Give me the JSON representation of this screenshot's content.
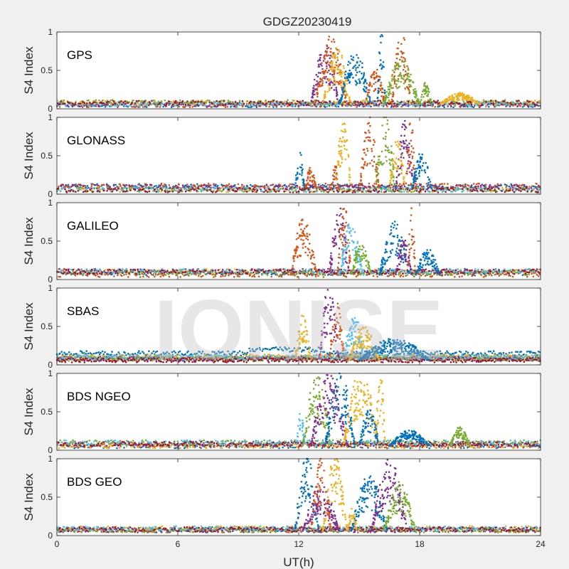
{
  "figure": {
    "title": "GDGZ20230419",
    "watermark": "IONISE",
    "xlabel": "UT(h)",
    "ylabel": "S4 Index",
    "colors": [
      "#0072BD",
      "#D95319",
      "#EDB120",
      "#7E2F8E",
      "#77AC30",
      "#4DBEEE",
      "#A2142F"
    ]
  },
  "chart_data": [
    {
      "type": "scatter",
      "title": "GPS",
      "xlabel": "",
      "ylabel": "S4 Index",
      "xlim": [
        0,
        24
      ],
      "ylim": [
        0,
        1
      ],
      "xticks": [
        0,
        6,
        12,
        18,
        24
      ],
      "yticks": [
        0,
        0.5,
        1
      ],
      "grid": false,
      "legend": false,
      "bursts": [
        {
          "series": 3,
          "x": [
            12.6,
            14.0
          ],
          "peak": 0.8
        },
        {
          "series": 1,
          "x": [
            12.8,
            14.4
          ],
          "peak": 0.9
        },
        {
          "series": 2,
          "x": [
            13.2,
            14.6
          ],
          "peak": 0.75
        },
        {
          "series": 0,
          "x": [
            14.0,
            15.6
          ],
          "peak": 0.7
        },
        {
          "series": 1,
          "x": [
            15.3,
            16.3
          ],
          "peak": 0.5
        },
        {
          "series": 0,
          "x": [
            15.9,
            16.3
          ],
          "peak": 1.0
        },
        {
          "series": 1,
          "x": [
            16.6,
            17.6
          ],
          "peak": 0.95
        },
        {
          "series": 4,
          "x": [
            16.2,
            18.0
          ],
          "peak": 0.6
        },
        {
          "series": 4,
          "x": [
            18.0,
            18.6
          ],
          "peak": 0.3
        },
        {
          "series": 2,
          "x": [
            19.0,
            21.0
          ],
          "peak": 0.15
        }
      ]
    },
    {
      "type": "scatter",
      "title": "GLONASS",
      "xlabel": "",
      "ylabel": "S4 Index",
      "xlim": [
        0,
        24
      ],
      "ylim": [
        0,
        1
      ],
      "xticks": [
        0,
        6,
        12,
        18,
        24
      ],
      "yticks": [
        0,
        0.5,
        1
      ],
      "grid": false,
      "legend": false,
      "bursts": [
        {
          "series": 0,
          "x": [
            11.8,
            12.3
          ],
          "peak": 0.5
        },
        {
          "series": 1,
          "x": [
            12.3,
            12.9
          ],
          "peak": 0.3
        },
        {
          "series": 1,
          "x": [
            13.6,
            14.0
          ],
          "peak": 0.35
        },
        {
          "series": 2,
          "x": [
            13.8,
            14.6
          ],
          "peak": 0.95
        },
        {
          "series": 1,
          "x": [
            15.0,
            16.0
          ],
          "peak": 0.95
        },
        {
          "series": 4,
          "x": [
            15.8,
            16.8
          ],
          "peak": 1.0
        },
        {
          "series": 3,
          "x": [
            16.8,
            17.7
          ],
          "peak": 0.9
        },
        {
          "series": 1,
          "x": [
            17.3,
            17.8
          ],
          "peak": 0.95
        },
        {
          "series": 0,
          "x": [
            17.6,
            18.6
          ],
          "peak": 0.5
        },
        {
          "series": 2,
          "x": [
            16.5,
            17.3
          ],
          "peak": 0.7
        }
      ]
    },
    {
      "type": "scatter",
      "title": "GALILEO",
      "xlabel": "",
      "ylabel": "S4 Index",
      "xlim": [
        0,
        24
      ],
      "ylim": [
        0,
        1
      ],
      "xticks": [
        0,
        6,
        12,
        18,
        24
      ],
      "yticks": [
        0,
        0.5,
        1
      ],
      "grid": false,
      "legend": false,
      "bursts": [
        {
          "series": 1,
          "x": [
            11.6,
            12.9
          ],
          "peak": 0.75
        },
        {
          "series": 3,
          "x": [
            13.5,
            14.5
          ],
          "peak": 0.9
        },
        {
          "series": 1,
          "x": [
            13.9,
            14.6
          ],
          "peak": 0.95
        },
        {
          "series": 5,
          "x": [
            14.0,
            15.2
          ],
          "peak": 0.7
        },
        {
          "series": 4,
          "x": [
            14.6,
            15.6
          ],
          "peak": 0.45
        },
        {
          "series": 0,
          "x": [
            16.0,
            17.5
          ],
          "peak": 0.7
        },
        {
          "series": 3,
          "x": [
            16.8,
            17.6
          ],
          "peak": 0.5
        },
        {
          "series": 1,
          "x": [
            17.4,
            17.8
          ],
          "peak": 0.95
        },
        {
          "series": 0,
          "x": [
            17.8,
            19.0
          ],
          "peak": 0.35
        }
      ]
    },
    {
      "type": "scatter",
      "title": "SBAS",
      "xlabel": "",
      "ylabel": "S4 Index",
      "xlim": [
        0,
        24
      ],
      "ylim": [
        0,
        1
      ],
      "xticks": [
        0,
        6,
        12,
        18,
        24
      ],
      "yticks": [
        0,
        0.5,
        1
      ],
      "grid": false,
      "legend": false,
      "bursts": [
        {
          "series": 2,
          "x": [
            11.8,
            12.6
          ],
          "peak": 0.6
        },
        {
          "series": 3,
          "x": [
            13.0,
            14.0
          ],
          "peak": 1.0
        },
        {
          "series": 1,
          "x": [
            13.5,
            14.3
          ],
          "peak": 0.75
        },
        {
          "series": 5,
          "x": [
            14.2,
            15.3
          ],
          "peak": 0.6
        },
        {
          "series": 2,
          "x": [
            14.5,
            16.0
          ],
          "peak": 0.45
        },
        {
          "series": 0,
          "x": [
            15.0,
            18.5
          ],
          "peak": 0.3
        }
      ]
    },
    {
      "type": "scatter",
      "title": "BDS NGEO",
      "xlabel": "",
      "ylabel": "S4 Index",
      "xlim": [
        0,
        24
      ],
      "ylim": [
        0,
        1
      ],
      "xticks": [
        0,
        6,
        12,
        18,
        24
      ],
      "yticks": [
        0,
        0.5,
        1
      ],
      "grid": false,
      "legend": false,
      "bursts": [
        {
          "series": 5,
          "x": [
            11.9,
            12.3
          ],
          "peak": 0.55
        },
        {
          "series": 4,
          "x": [
            12.2,
            13.6
          ],
          "peak": 0.95
        },
        {
          "series": 3,
          "x": [
            12.6,
            14.4
          ],
          "peak": 0.95
        },
        {
          "series": 0,
          "x": [
            13.3,
            14.8
          ],
          "peak": 1.0
        },
        {
          "series": 2,
          "x": [
            14.2,
            16.0
          ],
          "peak": 1.0
        },
        {
          "series": 0,
          "x": [
            15.0,
            16.0
          ],
          "peak": 0.5
        },
        {
          "series": 2,
          "x": [
            15.8,
            16.3
          ],
          "peak": 1.0
        },
        {
          "series": 4,
          "x": [
            19.5,
            20.5
          ],
          "peak": 0.25
        },
        {
          "series": 0,
          "x": [
            16.5,
            18.5
          ],
          "peak": 0.2
        }
      ]
    },
    {
      "type": "scatter",
      "title": "BDS GEO",
      "xlabel": "UT(h)",
      "ylabel": "S4 Index",
      "xlim": [
        0,
        24
      ],
      "ylim": [
        0,
        1
      ],
      "xticks": [
        0,
        6,
        12,
        18,
        24
      ],
      "yticks": [
        0,
        0.5,
        1
      ],
      "grid": false,
      "legend": false,
      "bursts": [
        {
          "series": 0,
          "x": [
            11.8,
            13.0
          ],
          "peak": 1.0
        },
        {
          "series": 3,
          "x": [
            12.2,
            14.0
          ],
          "peak": 0.6
        },
        {
          "series": 1,
          "x": [
            12.6,
            13.6
          ],
          "peak": 0.95
        },
        {
          "series": 2,
          "x": [
            13.2,
            14.4
          ],
          "peak": 1.0
        },
        {
          "series": 0,
          "x": [
            14.6,
            16.4
          ],
          "peak": 0.75
        },
        {
          "series": 3,
          "x": [
            15.6,
            17.4
          ],
          "peak": 0.95
        },
        {
          "series": 4,
          "x": [
            16.2,
            17.8
          ],
          "peak": 0.65
        },
        {
          "series": 2,
          "x": [
            14.4,
            14.9
          ],
          "peak": 0.3
        }
      ]
    }
  ]
}
